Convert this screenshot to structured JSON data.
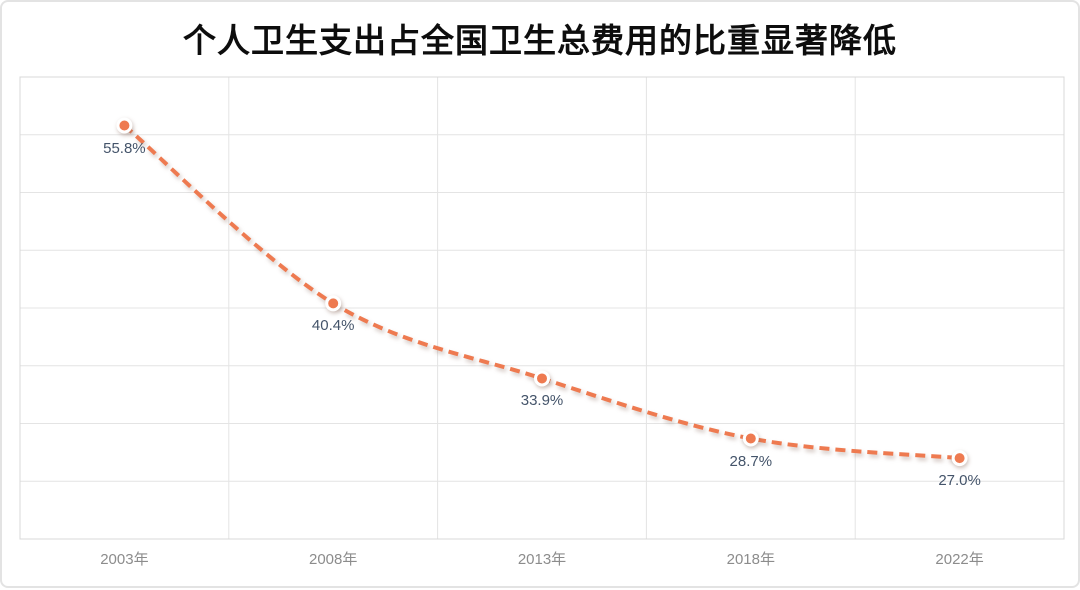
{
  "page": {
    "background_color": "#ffffff",
    "card_border_color": "#e3e3e3"
  },
  "chart_data": {
    "type": "line",
    "title": "个人卫生支出占全国卫生总费用的比重显著降低",
    "categories": [
      "2003年",
      "2008年",
      "2013年",
      "2018年",
      "2022年"
    ],
    "values": [
      55.8,
      40.4,
      33.9,
      28.7,
      27.0
    ],
    "data_labels": [
      "55.8%",
      "40.4%",
      "33.9%",
      "28.7%",
      "27.0%"
    ],
    "xlabel": "",
    "ylabel": "",
    "ylim": [
      20,
      60
    ],
    "y_gridline_step": 5,
    "grid": true,
    "legend": "none",
    "line_style": "dashed",
    "smooth": true,
    "colors": {
      "line": "#ee7a50",
      "marker_fill": "#ee7a50",
      "marker_ring": "#ffffff",
      "data_label": "#44546a",
      "axis_tick_label": "#8c8c8c",
      "gridline": "#e4e4e4",
      "plot_border": "#d8d8d8",
      "title": "#0d0d0d"
    }
  }
}
